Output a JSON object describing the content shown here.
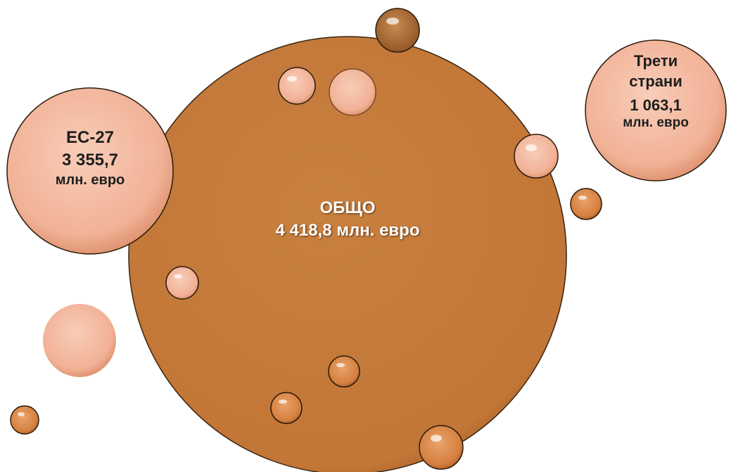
{
  "nodes": [
    {
      "title": "ОБЩО",
      "value": "4 418,8 млн. евро"
    },
    {
      "title": "ЕС-27",
      "value": "3 355,7",
      "unit": "млн. евро"
    },
    {
      "title": "Трети страни",
      "value": "1 063,1",
      "unit": "млн. евро"
    }
  ]
}
